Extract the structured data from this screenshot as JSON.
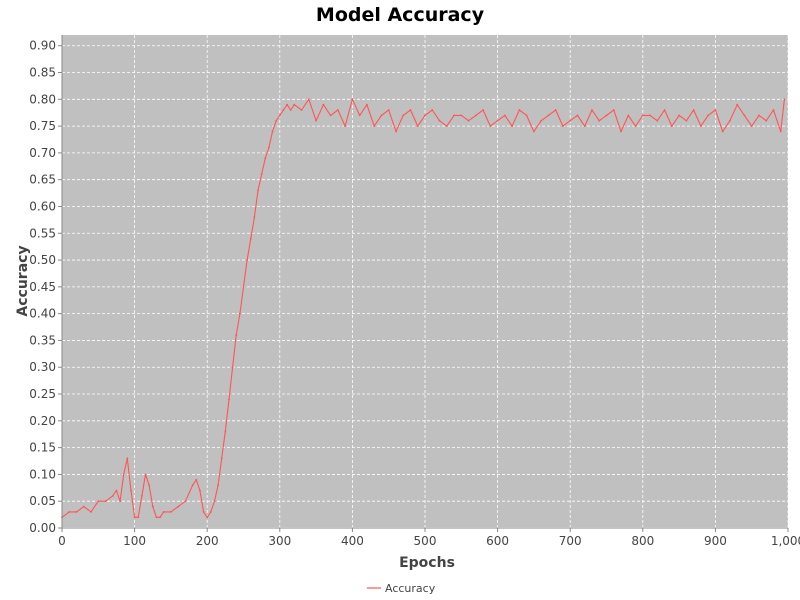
{
  "chart_data": {
    "type": "line",
    "title": "Model Accuracy",
    "xlabel": "Epochs",
    "ylabel": "Accuracy",
    "xlim": [
      0,
      1000
    ],
    "ylim": [
      0,
      0.92
    ],
    "x_ticks": [
      0,
      100,
      200,
      300,
      400,
      500,
      600,
      700,
      800,
      900,
      1000
    ],
    "x_tick_labels": [
      "0",
      "100",
      "200",
      "300",
      "400",
      "500",
      "600",
      "700",
      "800",
      "900",
      "1,000"
    ],
    "y_ticks": [
      0,
      0.05,
      0.1,
      0.15,
      0.2,
      0.25,
      0.3,
      0.35,
      0.4,
      0.45,
      0.5,
      0.55,
      0.6,
      0.65,
      0.7,
      0.75,
      0.8,
      0.85,
      0.9
    ],
    "y_tick_labels": [
      "0.00",
      "0.05",
      "0.10",
      "0.15",
      "0.20",
      "0.25",
      "0.30",
      "0.35",
      "0.40",
      "0.45",
      "0.50",
      "0.55",
      "0.60",
      "0.65",
      "0.70",
      "0.75",
      "0.80",
      "0.85",
      "0.90"
    ],
    "grid": true,
    "legend": "bottom-center",
    "plot_background": "#c0c0c0",
    "grid_color": "#ffffff",
    "series": [
      {
        "name": "Accuracy",
        "color": "#ff5555",
        "x": [
          0,
          10,
          20,
          30,
          40,
          50,
          60,
          70,
          75,
          80,
          85,
          90,
          95,
          100,
          105,
          110,
          115,
          120,
          125,
          130,
          135,
          140,
          150,
          160,
          170,
          180,
          185,
          190,
          195,
          200,
          205,
          210,
          215,
          220,
          225,
          230,
          235,
          240,
          245,
          250,
          255,
          260,
          265,
          270,
          275,
          280,
          285,
          290,
          295,
          300,
          305,
          310,
          315,
          320,
          330,
          340,
          350,
          360,
          370,
          380,
          390,
          400,
          410,
          420,
          430,
          440,
          450,
          460,
          470,
          480,
          490,
          500,
          510,
          520,
          530,
          540,
          550,
          560,
          570,
          580,
          590,
          600,
          610,
          620,
          630,
          640,
          650,
          660,
          670,
          680,
          690,
          700,
          710,
          720,
          730,
          740,
          750,
          760,
          770,
          780,
          790,
          800,
          810,
          820,
          830,
          840,
          850,
          860,
          870,
          880,
          890,
          900,
          910,
          920,
          930,
          940,
          950,
          960,
          970,
          980,
          990,
          995
        ],
        "values": [
          0.02,
          0.03,
          0.03,
          0.04,
          0.03,
          0.05,
          0.05,
          0.06,
          0.07,
          0.05,
          0.1,
          0.13,
          0.07,
          0.02,
          0.02,
          0.06,
          0.1,
          0.08,
          0.04,
          0.02,
          0.02,
          0.03,
          0.03,
          0.04,
          0.05,
          0.08,
          0.09,
          0.07,
          0.03,
          0.02,
          0.03,
          0.05,
          0.08,
          0.13,
          0.18,
          0.24,
          0.3,
          0.36,
          0.4,
          0.45,
          0.5,
          0.54,
          0.58,
          0.63,
          0.66,
          0.69,
          0.71,
          0.74,
          0.76,
          0.77,
          0.78,
          0.79,
          0.78,
          0.79,
          0.78,
          0.8,
          0.76,
          0.79,
          0.77,
          0.78,
          0.75,
          0.8,
          0.77,
          0.79,
          0.75,
          0.77,
          0.78,
          0.74,
          0.77,
          0.78,
          0.75,
          0.77,
          0.78,
          0.76,
          0.75,
          0.77,
          0.77,
          0.76,
          0.77,
          0.78,
          0.75,
          0.76,
          0.77,
          0.75,
          0.78,
          0.77,
          0.74,
          0.76,
          0.77,
          0.78,
          0.75,
          0.76,
          0.77,
          0.75,
          0.78,
          0.76,
          0.77,
          0.78,
          0.74,
          0.77,
          0.75,
          0.77,
          0.77,
          0.76,
          0.78,
          0.75,
          0.77,
          0.76,
          0.78,
          0.75,
          0.77,
          0.78,
          0.74,
          0.76,
          0.79,
          0.77,
          0.75,
          0.77,
          0.76,
          0.78,
          0.74,
          0.8
        ]
      }
    ]
  }
}
